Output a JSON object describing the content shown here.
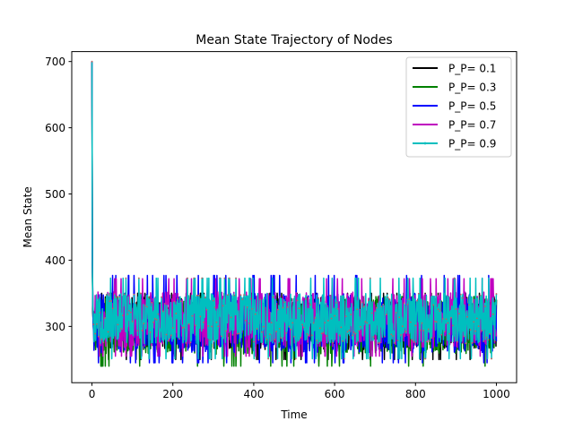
{
  "chart_data": {
    "type": "line",
    "title": "Mean State Trajectory of Nodes",
    "xlabel": "Time",
    "ylabel": "Mean State",
    "xlim": [
      -50,
      1050
    ],
    "ylim": [
      215,
      715
    ],
    "xticks": [
      0,
      200,
      400,
      600,
      800,
      1000
    ],
    "yticks": [
      300,
      400,
      500,
      600,
      700
    ],
    "grid": false,
    "legend_position": "top-right",
    "n_points": 1000,
    "series": [
      {
        "name": "P_P= 0.1",
        "color": "#000000",
        "marker": "none",
        "start": 700,
        "base": 305,
        "amplitude": 40,
        "min": 250,
        "max": 350,
        "seed": 11
      },
      {
        "name": "P_P= 0.3",
        "color": "#008000",
        "marker": "none",
        "start": 700,
        "base": 300,
        "amplitude": 42,
        "min": 240,
        "max": 345,
        "seed": 23
      },
      {
        "name": "P_P= 0.5",
        "color": "#0000ff",
        "marker": "none",
        "start": 700,
        "base": 305,
        "amplitude": 45,
        "min": 245,
        "max": 378,
        "seed": 37
      },
      {
        "name": "P_P= 0.7",
        "color": "#bf00bf",
        "marker": "none",
        "start": 700,
        "base": 310,
        "amplitude": 42,
        "min": 255,
        "max": 372,
        "seed": 51
      },
      {
        "name": "P_P= 0.9",
        "color": "#00bfbf",
        "marker": "dot",
        "start": 700,
        "base": 312,
        "amplitude": 38,
        "min": 238,
        "max": 387,
        "seed": 67
      }
    ]
  }
}
